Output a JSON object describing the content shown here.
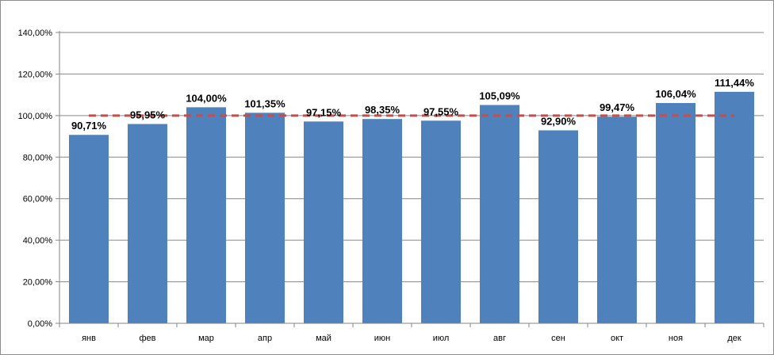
{
  "chart_data": {
    "type": "bar",
    "title": "",
    "xlabel": "",
    "ylabel": "",
    "categories": [
      "янв",
      "фев",
      "мар",
      "апр",
      "май",
      "июн",
      "июл",
      "авг",
      "сен",
      "окт",
      "ноя",
      "дек"
    ],
    "series": [
      {
        "values": [
          90.71,
          95.95,
          104.0,
          101.35,
          97.15,
          98.35,
          97.55,
          105.09,
          92.9,
          99.47,
          106.04,
          111.44
        ],
        "value_labels": [
          "90,71%",
          "95,95%",
          "104,00%",
          "101,35%",
          "97,15%",
          "98,35%",
          "97,55%",
          "105,09%",
          "92,90%",
          "99,47%",
          "106,04%",
          "111,44%"
        ],
        "color": "#4f81bd"
      }
    ],
    "reference_line": {
      "value": 100,
      "style": "dashed",
      "color": "#c0504d"
    },
    "ylim": [
      0,
      140
    ],
    "y_ticks": [
      0,
      20,
      40,
      60,
      80,
      100,
      120,
      140
    ],
    "y_tick_labels": [
      "0,00%",
      "20,00%",
      "40,00%",
      "60,00%",
      "80,00%",
      "100,00%",
      "120,00%",
      "140,00%"
    ],
    "grid": true,
    "gridline_color": "#868686",
    "legend": "none"
  }
}
